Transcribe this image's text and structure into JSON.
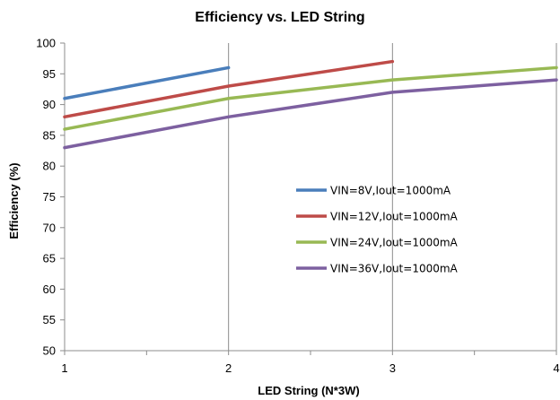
{
  "chart_data": {
    "type": "line",
    "title": "Efficiency vs. LED String",
    "xlabel": "LED String (N*3W)",
    "ylabel": "Efficiency (%)",
    "xlim": [
      1,
      4
    ],
    "ylim": [
      50,
      100
    ],
    "x_ticks": [
      1,
      2,
      3,
      4
    ],
    "y_ticks": [
      50,
      55,
      60,
      65,
      70,
      75,
      80,
      85,
      90,
      95,
      100
    ],
    "grid": "vertical major gridlines",
    "legend_position": "center-right",
    "series": [
      {
        "name": "VIN=8V,Iout=1000mA",
        "color": "#4a7ebb",
        "x": [
          1,
          2
        ],
        "y": [
          91,
          96
        ]
      },
      {
        "name": "VIN=12V,Iout=1000mA",
        "color": "#be4b48",
        "x": [
          1,
          2,
          3
        ],
        "y": [
          88,
          93,
          97
        ]
      },
      {
        "name": "VIN=24V,Iout=1000mA",
        "color": "#98b954",
        "x": [
          1,
          2,
          3,
          4
        ],
        "y": [
          86,
          91,
          94,
          96
        ]
      },
      {
        "name": "VIN=36V,Iout=1000mA",
        "color": "#7d60a0",
        "x": [
          1,
          2,
          3,
          4
        ],
        "y": [
          83,
          88,
          92,
          94
        ]
      }
    ]
  }
}
